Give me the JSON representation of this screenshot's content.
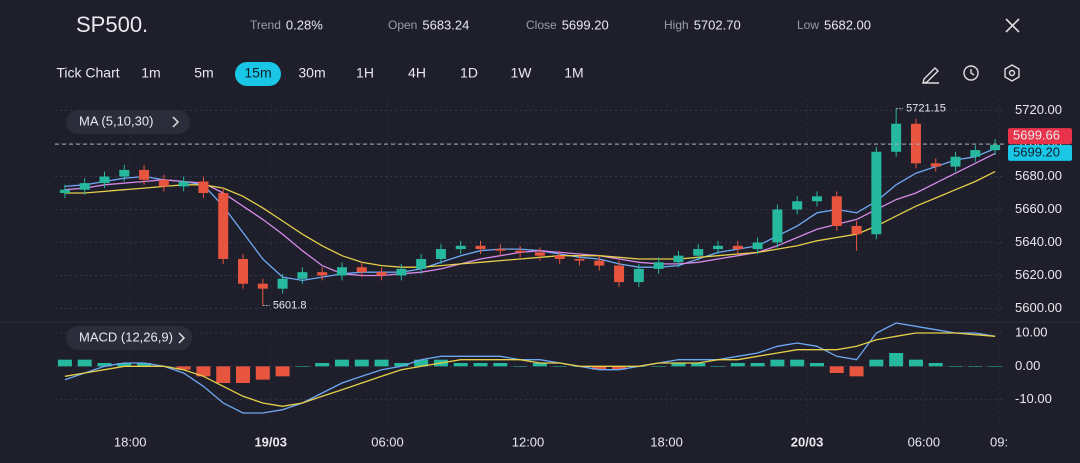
{
  "header": {
    "symbol": "SP500.",
    "stats": [
      {
        "name": "Trend",
        "value": "0.28%"
      },
      {
        "name": "Open",
        "value": "5683.24"
      },
      {
        "name": "Close",
        "value": "5699.20"
      },
      {
        "name": "High",
        "value": "5702.70"
      },
      {
        "name": "Low",
        "value": "5682.00"
      }
    ]
  },
  "toolbar": {
    "items": [
      "Tick Chart",
      "1m",
      "5m",
      "15m",
      "30m",
      "1H",
      "4H",
      "1D",
      "1W",
      "1M"
    ],
    "active": "15m"
  },
  "chart_data": {
    "type": "candlestick",
    "panel_labels": {
      "ma": "MA (5,10,30)",
      "macd": "MACD (12,26,9)"
    },
    "up_color": "#26b9a0",
    "down_color": "#e8553e",
    "xlim": [
      0,
      48
    ],
    "xticks": [
      {
        "value": 3.8,
        "label": "18:00"
      },
      {
        "value": 10.9,
        "label": "19/03"
      },
      {
        "value": 16.8,
        "label": "06:00"
      },
      {
        "value": 23.9,
        "label": "12:00"
      },
      {
        "value": 30.9,
        "label": "18:00"
      },
      {
        "value": 38.0,
        "label": "20/03"
      },
      {
        "value": 43.9,
        "label": "06:00"
      },
      {
        "value": 47.7,
        "label": "09:"
      }
    ],
    "ylim": [
      5593,
      5727
    ],
    "yticks": [
      {
        "value": 5600,
        "label": "5600.00"
      },
      {
        "value": 5620,
        "label": "5620.00"
      },
      {
        "value": 5640,
        "label": "5640.00"
      },
      {
        "value": 5660,
        "label": "5660.00"
      },
      {
        "value": 5680,
        "label": "5680.00"
      },
      {
        "value": 5700,
        "label": "5700.00"
      },
      {
        "value": 5720,
        "label": "5720.00"
      }
    ],
    "grid": true,
    "price_markers": [
      {
        "value": 5699.66,
        "label": "5699.66",
        "color": "#e8334a"
      },
      {
        "value": 5699.2,
        "label": "5699.20",
        "color": "#19c6e6"
      }
    ],
    "open": [
      5670,
      5672,
      5676,
      5680,
      5684,
      5678,
      5674,
      5677,
      5670,
      5630,
      5615,
      5612,
      5618,
      5622,
      5620,
      5625,
      5622,
      5620,
      5624,
      5630,
      5636,
      5638,
      5636,
      5635,
      5634,
      5632,
      5630,
      5629,
      5626,
      5616,
      5624,
      5628,
      5632,
      5636,
      5638,
      5636,
      5640,
      5660,
      5665,
      5668,
      5650,
      5645,
      5695,
      5712,
      5688,
      5686,
      5692,
      5696
    ],
    "high": [
      5675,
      5679,
      5683,
      5687,
      5687,
      5681,
      5680,
      5680,
      5673,
      5633,
      5618,
      5621,
      5625,
      5625,
      5628,
      5628,
      5625,
      5627,
      5633,
      5639,
      5641,
      5641,
      5639,
      5638,
      5637,
      5635,
      5633,
      5632,
      5629,
      5627,
      5631,
      5635,
      5639,
      5641,
      5641,
      5643,
      5663,
      5668,
      5671,
      5671,
      5653,
      5698,
      5721.15,
      5715,
      5691,
      5695,
      5699,
      5702.7
    ],
    "low": [
      5667,
      5669,
      5673,
      5677,
      5675,
      5671,
      5671,
      5667,
      5627,
      5612,
      5601.8,
      5609,
      5615,
      5617,
      5617,
      5619,
      5617,
      5617,
      5621,
      5627,
      5633,
      5633,
      5632,
      5631,
      5629,
      5627,
      5626,
      5623,
      5613,
      5613,
      5621,
      5625,
      5629,
      5633,
      5633,
      5633,
      5637,
      5657,
      5662,
      5647,
      5635,
      5642,
      5692,
      5685,
      5683,
      5683,
      5689,
      5693
    ],
    "close": [
      5672,
      5676,
      5680,
      5684,
      5678,
      5674,
      5677,
      5670,
      5630,
      5615,
      5612,
      5618,
      5622,
      5620,
      5625,
      5622,
      5620,
      5624,
      5630,
      5636,
      5638,
      5636,
      5635,
      5634,
      5632,
      5630,
      5629,
      5626,
      5616,
      5624,
      5628,
      5632,
      5636,
      5638,
      5636,
      5640,
      5660,
      5665,
      5668,
      5650,
      5645,
      5695,
      5712,
      5688,
      5686,
      5692,
      5696,
      5699.2
    ],
    "series": [
      {
        "name": "MA5",
        "color": "#6ea8f2",
        "values": [
          5674,
          5675,
          5677,
          5679,
          5680,
          5678,
          5677,
          5675,
          5662,
          5646,
          5630,
          5619,
          5617,
          5619,
          5621,
          5622,
          5622,
          5622,
          5624,
          5628,
          5632,
          5635,
          5636,
          5636,
          5635,
          5633,
          5631,
          5630,
          5627,
          5625,
          5625,
          5626,
          5630,
          5634,
          5636,
          5638,
          5644,
          5650,
          5658,
          5660,
          5658,
          5665,
          5675,
          5682,
          5686,
          5690,
          5692,
          5697
        ]
      },
      {
        "name": "MA10",
        "color": "#d68ae6",
        "values": [
          5672,
          5673,
          5675,
          5676,
          5677,
          5678,
          5677,
          5676,
          5670,
          5662,
          5654,
          5645,
          5635,
          5626,
          5621,
          5620,
          5620,
          5621,
          5622,
          5624,
          5627,
          5630,
          5632,
          5634,
          5635,
          5634,
          5633,
          5632,
          5630,
          5628,
          5627,
          5627,
          5628,
          5630,
          5632,
          5634,
          5638,
          5643,
          5648,
          5651,
          5654,
          5660,
          5666,
          5670,
          5676,
          5682,
          5688,
          5694
        ]
      },
      {
        "name": "MA30",
        "color": "#e6cf4a",
        "values": [
          5670,
          5670,
          5671,
          5672,
          5673,
          5674,
          5675,
          5675,
          5673,
          5668,
          5661,
          5653,
          5645,
          5638,
          5632,
          5628,
          5626,
          5625,
          5625,
          5626,
          5627,
          5628,
          5629,
          5630,
          5631,
          5632,
          5632,
          5632,
          5631,
          5630,
          5630,
          5630,
          5631,
          5632,
          5633,
          5634,
          5636,
          5638,
          5641,
          5643,
          5645,
          5650,
          5656,
          5662,
          5667,
          5672,
          5677,
          5683
        ]
      }
    ],
    "macd": {
      "y2lim": [
        -15.5,
        14.5
      ],
      "y2ticks": [
        {
          "value": 10,
          "label": "10.00"
        },
        {
          "value": 0,
          "label": "0.00"
        },
        {
          "value": -10,
          "label": "-10.00"
        }
      ],
      "hist_up_color": "#26b9a0",
      "hist_down_color": "#e8553e",
      "histogram": [
        2,
        2,
        1,
        1,
        1,
        0,
        -1,
        -3,
        -5,
        -5,
        -4,
        -3,
        0,
        1,
        2,
        2,
        2,
        1,
        2,
        2,
        1,
        1,
        1,
        0,
        1,
        0,
        0,
        -1,
        -1,
        0,
        0,
        1,
        1,
        0,
        1,
        1,
        2,
        2,
        1,
        -2,
        -3,
        2,
        4,
        2,
        1,
        0,
        0,
        0
      ],
      "series": [
        {
          "name": "MACD",
          "color": "#6ea8f2",
          "values": [
            -4,
            -2,
            0,
            1,
            1,
            0,
            -2,
            -6,
            -11,
            -14,
            -14,
            -13,
            -11,
            -8,
            -5,
            -3,
            -1,
            0,
            2,
            3,
            3,
            3,
            3,
            2,
            2,
            1,
            0,
            -1,
            -1,
            0,
            1,
            2,
            2,
            2,
            3,
            4,
            6,
            7,
            6,
            3,
            2,
            10,
            13,
            12,
            11,
            10,
            10,
            9
          ]
        },
        {
          "name": "Signal",
          "color": "#e6cf4a",
          "values": [
            -3,
            -2,
            -1,
            0,
            0,
            0,
            -1,
            -3,
            -6,
            -9,
            -11,
            -12,
            -11,
            -9,
            -7,
            -5,
            -3,
            -1,
            0,
            1,
            2,
            2,
            2,
            2,
            1,
            1,
            0,
            0,
            0,
            0,
            1,
            1,
            1,
            2,
            2,
            3,
            4,
            5,
            5,
            5,
            6,
            8,
            9,
            10,
            10,
            10,
            9.5,
            9
          ]
        }
      ]
    }
  }
}
